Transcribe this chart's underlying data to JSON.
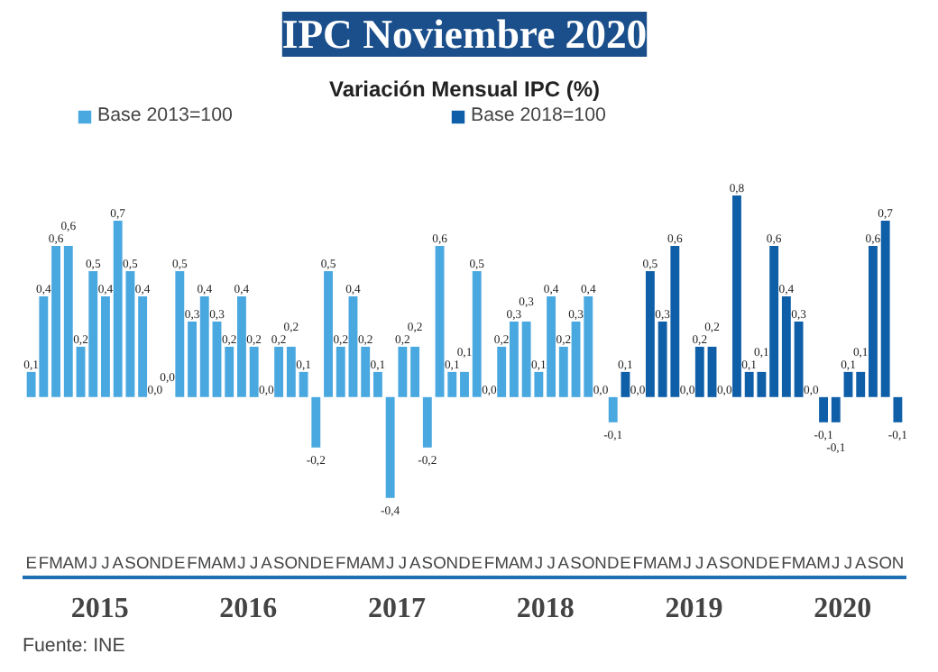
{
  "chart_data": {
    "type": "bar",
    "title": "IPC Noviembre 2020",
    "subtitle": "Variación Mensual IPC (%)",
    "categories": [
      "E",
      "F",
      "M",
      "A",
      "M",
      "J",
      "J",
      "A",
      "S",
      "O",
      "N",
      "D",
      "E",
      "F",
      "M",
      "A",
      "M",
      "J",
      "J",
      "A",
      "S",
      "O",
      "N",
      "D",
      "E",
      "F",
      "M",
      "A",
      "M",
      "J",
      "J",
      "A",
      "S",
      "O",
      "N",
      "D",
      "E",
      "F",
      "M",
      "A",
      "M",
      "J",
      "J",
      "A",
      "S",
      "O",
      "N",
      "D",
      "E",
      "F",
      "M",
      "A",
      "M",
      "J",
      "J",
      "A",
      "S",
      "O",
      "N",
      "D",
      "E",
      "F",
      "M",
      "A",
      "M",
      "J",
      "J",
      "A",
      "S",
      "O",
      "N"
    ],
    "series": [
      {
        "name": "Base 2013=100",
        "color": "#4aa8e0",
        "values": [
          0.1,
          0.4,
          0.6,
          0.6,
          0.2,
          0.5,
          0.4,
          0.7,
          0.5,
          0.4,
          0.0,
          0.0,
          0.5,
          0.3,
          0.4,
          0.3,
          0.2,
          0.4,
          0.2,
          0.0,
          0.2,
          0.2,
          0.1,
          -0.2,
          0.5,
          0.2,
          0.4,
          0.2,
          0.1,
          -0.4,
          0.2,
          0.2,
          -0.2,
          0.6,
          0.1,
          0.1,
          0.5,
          0.0,
          0.2,
          0.3,
          0.3,
          0.1,
          0.4,
          0.2,
          0.3,
          0.4,
          0.0,
          -0.1,
          null,
          null,
          null,
          null,
          null,
          null,
          null,
          null,
          null,
          null,
          null,
          null,
          null,
          null,
          null,
          null,
          null,
          null,
          null,
          null,
          null,
          null,
          null
        ],
        "value_labels": [
          "0,1",
          "0,4",
          "0,6",
          "0,6",
          "0,2",
          "0,5",
          "0,4",
          "0,7",
          "0,5",
          "0,4",
          "0,0",
          "0,0",
          "0,5",
          "0,3",
          "0,4",
          "0,3",
          "0,2",
          "0,4",
          "0,2",
          "0,0",
          "0,2",
          "0,2",
          "0,1",
          "-0,2",
          "0,5",
          "0,2",
          "0,4",
          "0,2",
          "0,1",
          "-0,4",
          "0,2",
          "0,2",
          "-0,2",
          "0,6",
          "0,1",
          "0,1",
          "0,5",
          "0,0",
          "0,2",
          "0,3",
          "0,3",
          "0,1",
          "0,4",
          "0,2",
          "0,3",
          "0,4",
          "0,0",
          "-0,1",
          null,
          null,
          null,
          null,
          null,
          null,
          null,
          null,
          null,
          null,
          null,
          null,
          null,
          null,
          null,
          null,
          null,
          null,
          null,
          null,
          null,
          null,
          null
        ]
      },
      {
        "name": "Base 2018=100",
        "color": "#0f5fa8",
        "values": [
          null,
          null,
          null,
          null,
          null,
          null,
          null,
          null,
          null,
          null,
          null,
          null,
          null,
          null,
          null,
          null,
          null,
          null,
          null,
          null,
          null,
          null,
          null,
          null,
          null,
          null,
          null,
          null,
          null,
          null,
          null,
          null,
          null,
          null,
          null,
          null,
          null,
          null,
          null,
          null,
          null,
          null,
          null,
          null,
          null,
          null,
          null,
          null,
          0.1,
          0.0,
          0.5,
          0.3,
          0.6,
          0.0,
          0.2,
          0.2,
          0.0,
          0.8,
          0.1,
          0.1,
          0.6,
          0.4,
          0.3,
          0.0,
          -0.1,
          -0.1,
          0.1,
          0.1,
          0.6,
          0.7,
          -0.1
        ],
        "value_labels": [
          null,
          null,
          null,
          null,
          null,
          null,
          null,
          null,
          null,
          null,
          null,
          null,
          null,
          null,
          null,
          null,
          null,
          null,
          null,
          null,
          null,
          null,
          null,
          null,
          null,
          null,
          null,
          null,
          null,
          null,
          null,
          null,
          null,
          null,
          null,
          null,
          null,
          null,
          null,
          null,
          null,
          null,
          null,
          null,
          null,
          null,
          null,
          null,
          "0,1",
          "0,0",
          "0,5",
          "0,3",
          "0,6",
          "0,0",
          "0,2",
          "0,2",
          "0,0",
          "0,8",
          "0,1",
          "0,1",
          "0,6",
          "0,4",
          "0,3",
          "0,0",
          "-0,1",
          "-0,1",
          "0,1",
          "0,1",
          "0,6",
          "0,7",
          "-0,1"
        ]
      }
    ],
    "x2lim": [
      2014.48,
      2020.43
    ],
    "x2ticks": [
      2015,
      2016,
      2017,
      2018,
      2019,
      2020
    ],
    "legend": "top",
    "grid": false,
    "annotations": [
      "Fuente: INE"
    ]
  }
}
